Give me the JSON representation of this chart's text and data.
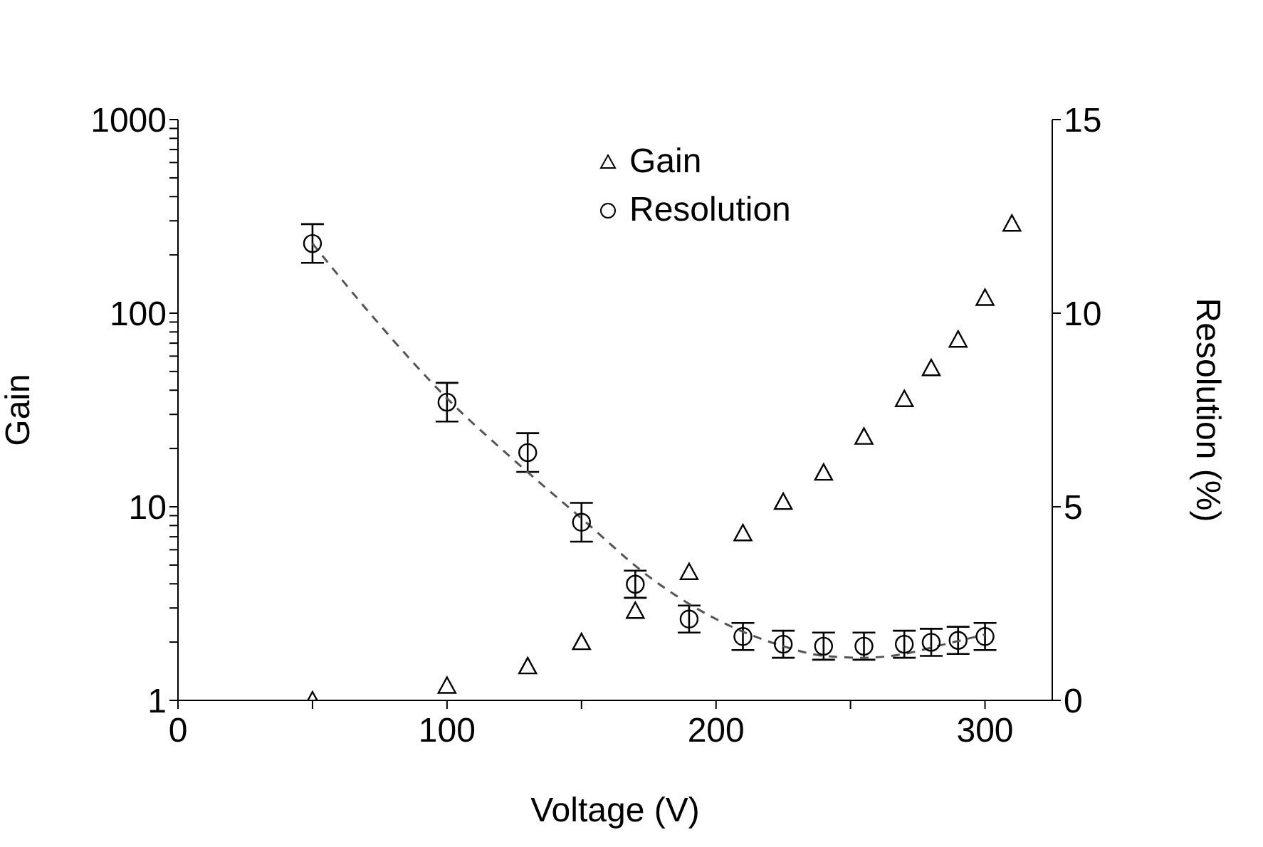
{
  "chart_data": {
    "type": "scatter",
    "xlabel": "Voltage (V)",
    "ylabel": "Gain",
    "y2label": "Resolution (%)",
    "xlim": [
      0,
      325
    ],
    "xticks": [
      0,
      {
        "value": 50,
        "label": null
      },
      100,
      {
        "value": 150,
        "label": null
      },
      200,
      {
        "value": 250,
        "label": null
      },
      300
    ],
    "ylim": [
      1,
      1000
    ],
    "yticks": [
      1,
      {
        "value": 2,
        "label": null
      },
      {
        "value": 3,
        "label": null
      },
      {
        "value": 4,
        "label": null
      },
      {
        "value": 5,
        "label": null
      },
      {
        "value": 6,
        "label": null
      },
      {
        "value": 7,
        "label": null
      },
      {
        "value": 8,
        "label": null
      },
      {
        "value": 9,
        "label": null
      },
      10,
      {
        "value": 20,
        "label": null
      },
      {
        "value": 30,
        "label": null
      },
      {
        "value": 40,
        "label": null
      },
      {
        "value": 50,
        "label": null
      },
      {
        "value": 60,
        "label": null
      },
      {
        "value": 70,
        "label": null
      },
      {
        "value": 80,
        "label": null
      },
      {
        "value": 90,
        "label": null
      },
      100,
      {
        "value": 200,
        "label": null
      },
      {
        "value": 300,
        "label": null
      },
      {
        "value": 400,
        "label": null
      },
      {
        "value": 500,
        "label": null
      },
      {
        "value": 600,
        "label": null
      },
      {
        "value": 700,
        "label": null
      },
      {
        "value": 800,
        "label": null
      },
      {
        "value": 900,
        "label": null
      },
      1000
    ],
    "log": "y",
    "y2lim": [
      0,
      15
    ],
    "y2ticks": [
      0,
      5,
      10,
      15
    ],
    "legend": "top",
    "series": [
      {
        "name": "Gain",
        "marker": "triangle",
        "color": "#000000",
        "x": [
          50,
          100,
          130,
          150,
          170,
          190,
          210,
          225,
          240,
          255,
          270,
          280,
          290,
          300,
          310
        ],
        "values": [
          1.0,
          1.19,
          1.5,
          2.0,
          2.9,
          4.6,
          7.3,
          10.6,
          15,
          23,
          36,
          52,
          73,
          120,
          290
        ]
      },
      {
        "name": "Resolution",
        "marker": "circle",
        "color": "#000000",
        "axis": "y2",
        "x": [
          50,
          100,
          130,
          150,
          170,
          190,
          210,
          225,
          240,
          255,
          270,
          280,
          290,
          300
        ],
        "values": [
          11.8,
          7.7,
          6.4,
          4.6,
          3.0,
          2.1,
          1.65,
          1.45,
          1.4,
          1.4,
          1.45,
          1.5,
          1.55,
          1.65
        ],
        "errors": [
          0.5,
          0.5,
          0.5,
          0.5,
          0.35,
          0.35,
          0.35,
          0.35,
          0.35,
          0.35,
          0.35,
          0.35,
          0.35,
          0.35
        ]
      },
      {
        "type": "line",
        "line_style": "dashed",
        "marker": "none",
        "color": "#555555",
        "axis": "y2",
        "x": [
          50,
          75,
          100,
          125,
          150,
          175,
          200,
          225,
          240,
          255,
          270,
          285,
          300
        ],
        "values": [
          11.8,
          9.7,
          7.8,
          6.2,
          4.7,
          3.2,
          2.1,
          1.4,
          1.15,
          1.1,
          1.2,
          1.45,
          1.7
        ]
      }
    ]
  }
}
